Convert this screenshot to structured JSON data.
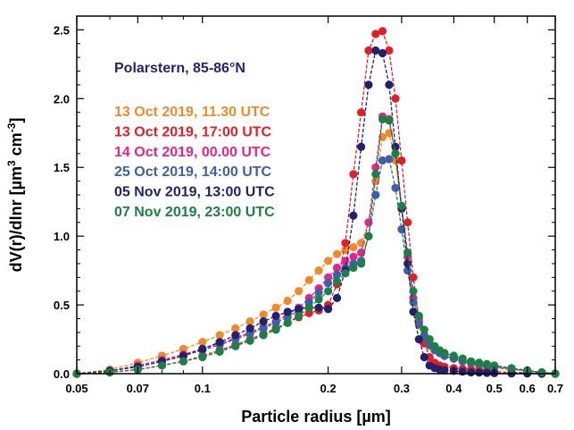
{
  "chart_data": {
    "type": "line",
    "title": "",
    "annotation": {
      "text": "Polarstern, 85-86°N",
      "color": "#26226e"
    },
    "xlabel": "Particle radius [µm]",
    "ylabel": {
      "main": "dV(r)/dlnr [µm",
      "sup1": "3",
      "mid": " cm",
      "sup2": "-3",
      "end": "]"
    },
    "xscale": "log",
    "xlim": [
      0.05,
      0.7
    ],
    "ylim": [
      0,
      2.6
    ],
    "xticks_major": [
      0.05,
      0.07,
      0.1,
      0.2,
      0.3,
      0.4,
      0.5,
      0.6,
      0.7
    ],
    "xtick_labels": [
      "0.05",
      "0.07",
      "0.1",
      "0.2",
      "0.3",
      "0.4",
      "0.5",
      "0.6",
      "0.7"
    ],
    "xticks_minor": [
      0.06,
      0.08,
      0.09
    ],
    "yticks_major": [
      0,
      0.5,
      1.0,
      1.5,
      2.0,
      2.5
    ],
    "ytick_labels": [
      "0.0",
      "0.5",
      "1.0",
      "1.5",
      "2.0",
      "2.5"
    ],
    "yticks_minor": [
      0.1,
      0.2,
      0.3,
      0.4,
      0.6,
      0.7,
      0.8,
      0.9,
      1.1,
      1.2,
      1.3,
      1.4,
      1.6,
      1.7,
      1.8,
      1.9,
      2.1,
      2.2,
      2.3,
      2.4
    ],
    "grid": false,
    "legend_position": "upper-left",
    "x": [
      0.05,
      0.06,
      0.07,
      0.08,
      0.09,
      0.1,
      0.11,
      0.12,
      0.13,
      0.14,
      0.15,
      0.16,
      0.17,
      0.18,
      0.19,
      0.2,
      0.21,
      0.22,
      0.23,
      0.24,
      0.25,
      0.26,
      0.27,
      0.28,
      0.29,
      0.3,
      0.31,
      0.32,
      0.33,
      0.34,
      0.35,
      0.36,
      0.37,
      0.38,
      0.4,
      0.42,
      0.44,
      0.46,
      0.48,
      0.5,
      0.55,
      0.6,
      0.65,
      0.7
    ],
    "series": [
      {
        "name": "13 Oct 2019, 11.30 UTC",
        "color": "#f08a28",
        "values": [
          0.0,
          0.03,
          0.08,
          0.13,
          0.18,
          0.23,
          0.28,
          0.33,
          0.38,
          0.43,
          0.48,
          0.53,
          0.6,
          0.68,
          0.75,
          0.82,
          0.87,
          0.9,
          0.92,
          0.95,
          1.1,
          1.4,
          1.72,
          1.75,
          1.55,
          1.2,
          0.85,
          0.55,
          0.35,
          0.25,
          0.2,
          0.17,
          0.15,
          0.13,
          0.11,
          0.09,
          0.07,
          0.06,
          0.05,
          0.04,
          0.03,
          0.02,
          0.01,
          0.0
        ]
      },
      {
        "name": "13 Oct 2019, 17:00 UTC",
        "color": "#e31e24",
        "values": [
          0.0,
          0.01,
          0.03,
          0.06,
          0.09,
          0.13,
          0.17,
          0.21,
          0.25,
          0.29,
          0.33,
          0.37,
          0.41,
          0.44,
          0.46,
          0.5,
          0.65,
          0.95,
          1.45,
          1.9,
          2.35,
          2.47,
          2.49,
          2.35,
          2.0,
          1.55,
          1.1,
          0.7,
          0.4,
          0.22,
          0.12,
          0.08,
          0.06,
          0.05,
          0.04,
          0.035,
          0.03,
          0.025,
          0.02,
          0.015,
          0.01,
          0.008,
          0.004,
          0.0
        ]
      },
      {
        "name": "14 Oct 2019, 00.00 UTC",
        "color": "#e6248a",
        "values": [
          0.0,
          0.02,
          0.06,
          0.1,
          0.14,
          0.18,
          0.22,
          0.26,
          0.3,
          0.34,
          0.38,
          0.43,
          0.48,
          0.55,
          0.62,
          0.7,
          0.77,
          0.82,
          0.85,
          0.88,
          1.1,
          1.5,
          1.87,
          1.85,
          1.6,
          1.2,
          0.85,
          0.55,
          0.38,
          0.28,
          0.22,
          0.18,
          0.15,
          0.13,
          0.11,
          0.09,
          0.08,
          0.07,
          0.06,
          0.05,
          0.035,
          0.02,
          0.01,
          0.0
        ]
      },
      {
        "name": "25 Oct 2019, 14:00 UTC",
        "color": "#3e5faa",
        "values": [
          0.0,
          0.02,
          0.05,
          0.09,
          0.13,
          0.17,
          0.21,
          0.25,
          0.29,
          0.33,
          0.37,
          0.41,
          0.46,
          0.52,
          0.59,
          0.66,
          0.72,
          0.77,
          0.8,
          0.82,
          1.0,
          1.3,
          1.55,
          1.56,
          1.35,
          1.05,
          0.75,
          0.52,
          0.36,
          0.27,
          0.21,
          0.17,
          0.15,
          0.13,
          0.11,
          0.09,
          0.08,
          0.07,
          0.06,
          0.05,
          0.035,
          0.02,
          0.01,
          0.0
        ]
      },
      {
        "name": "05 Nov 2019, 13:00 UTC",
        "color": "#25206a",
        "values": [
          0.0,
          0.02,
          0.05,
          0.09,
          0.13,
          0.18,
          0.23,
          0.28,
          0.33,
          0.38,
          0.42,
          0.45,
          0.47,
          0.48,
          0.48,
          0.47,
          0.55,
          0.75,
          1.15,
          1.65,
          2.1,
          2.35,
          2.33,
          2.1,
          1.65,
          1.2,
          0.8,
          0.45,
          0.25,
          0.12,
          0.06,
          0.04,
          0.03,
          0.025,
          0.02,
          0.015,
          0.01,
          0.008,
          0.006,
          0.004,
          0.002,
          0.001,
          0.0,
          0.0
        ]
      },
      {
        "name": "07 Nov 2019, 23:00 UTC",
        "color": "#1a8046",
        "values": [
          0.0,
          0.01,
          0.03,
          0.06,
          0.09,
          0.12,
          0.16,
          0.2,
          0.24,
          0.28,
          0.32,
          0.37,
          0.42,
          0.48,
          0.54,
          0.6,
          0.67,
          0.73,
          0.77,
          0.8,
          1.0,
          1.45,
          1.85,
          1.84,
          1.6,
          1.22,
          0.88,
          0.6,
          0.42,
          0.32,
          0.25,
          0.2,
          0.17,
          0.15,
          0.13,
          0.11,
          0.09,
          0.08,
          0.07,
          0.06,
          0.04,
          0.025,
          0.01,
          0.0
        ]
      }
    ]
  }
}
